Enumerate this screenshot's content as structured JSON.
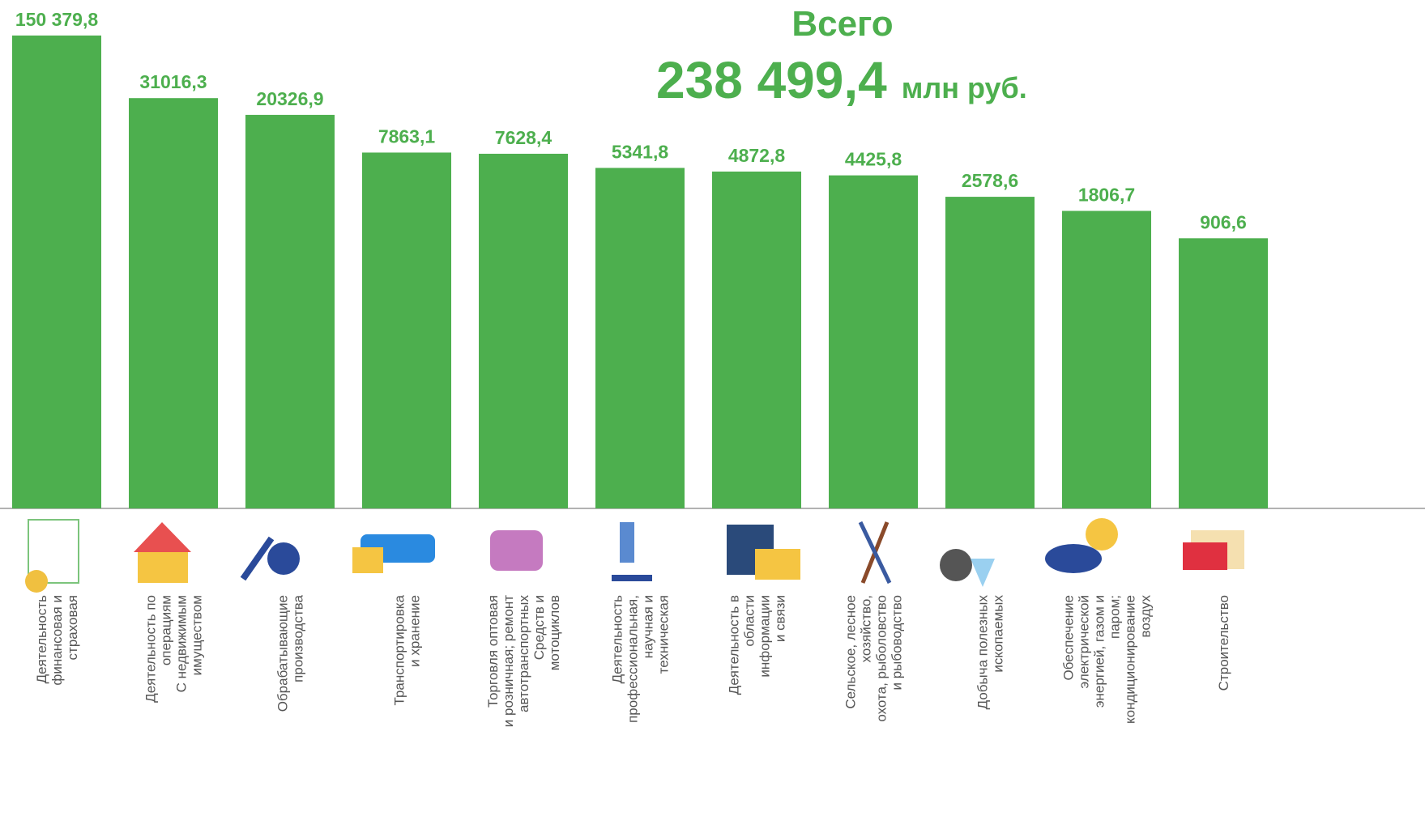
{
  "chart_data": {
    "type": "bar",
    "title": "Всего",
    "total": {
      "value": "238 499,4",
      "unit": "млн руб."
    },
    "categories": [
      [
        "Деятельность",
        "финансовая и",
        "страховая"
      ],
      [
        "Деятельность по",
        "операциям",
        "С недвижимым",
        "имуществом"
      ],
      [
        "Обрабатывающие",
        "производства"
      ],
      [
        "Транспортировка",
        "и хранение"
      ],
      [
        "Торговля оптовая",
        "и розничная; ремонт",
        "автотранспортных",
        "Средств и",
        "мотоциклов"
      ],
      [
        "Деятельность",
        "профессиональная,",
        "научная и",
        "техническая"
      ],
      [
        "Деятельность в",
        "области",
        "информации",
        "и связи"
      ],
      [
        "Сельское, лесное",
        "хозяйство,",
        "охота, рыболовство",
        "и рыбоводство"
      ],
      [
        "Добыча полезных",
        "ископаемых"
      ],
      [
        "Обеспечение",
        "электрической",
        "энергией, газом и",
        "паром;",
        "кондиционирование",
        "воздух"
      ],
      [
        "Строительство"
      ]
    ],
    "values": [
      150379.8,
      31016.3,
      20326.9,
      7863.1,
      7628.4,
      5341.8,
      4872.8,
      4425.8,
      2578.6,
      1806.7,
      906.6
    ],
    "value_labels": [
      "150 379,8",
      "31016,3",
      "20326,9",
      "7863,1",
      "7628,4",
      "5341,8",
      "4872,8",
      "4425,8",
      "2578,6",
      "1806,7",
      "906,6"
    ],
    "color": "#4daf4e",
    "log_scale": true,
    "ylim": [
      1,
      300000
    ]
  }
}
